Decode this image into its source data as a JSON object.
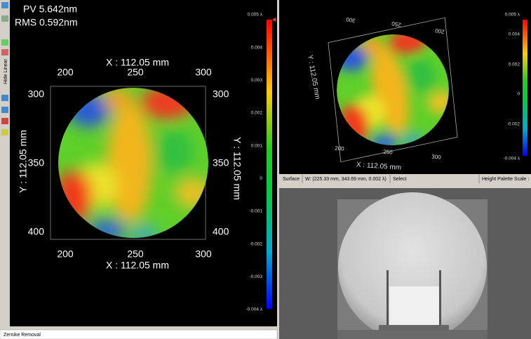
{
  "toolbar": {
    "label": "Hide Linear"
  },
  "left_view": {
    "pv": "PV 5.642nm",
    "rms": "RMS 0.592nm",
    "x_axis_label": "X : 112.05 mm",
    "y_axis_label": "Y : 112.05 mm",
    "x_ticks": [
      "200",
      "250",
      "300"
    ],
    "y_ticks": [
      "300",
      "350",
      "400"
    ],
    "colorbar_labels": [
      "0.005 λ",
      "0.004",
      "0.003",
      "0.002",
      "0.001",
      "0",
      "-0.001",
      "-0.002",
      "-0.003",
      "-0.004 λ"
    ]
  },
  "surface_view": {
    "x_axis_label": "X : 112.05 mm",
    "y_axis_label": "Y : 112.05 mm",
    "x_ticks": [
      "200",
      "250",
      "300"
    ],
    "colorbar_labels": [
      "0.005 λ",
      "0.004",
      "0.002",
      "0",
      "-0.002",
      "-0.004 λ"
    ]
  },
  "status_bar": {
    "mode": "Surface",
    "cursor": "W: (225.33 mm, 343.69 mm, 0.002 λ)",
    "tool": "Select",
    "palette": "Height Palette Scale :"
  },
  "footer": {
    "label": "Zernike Removal"
  }
}
